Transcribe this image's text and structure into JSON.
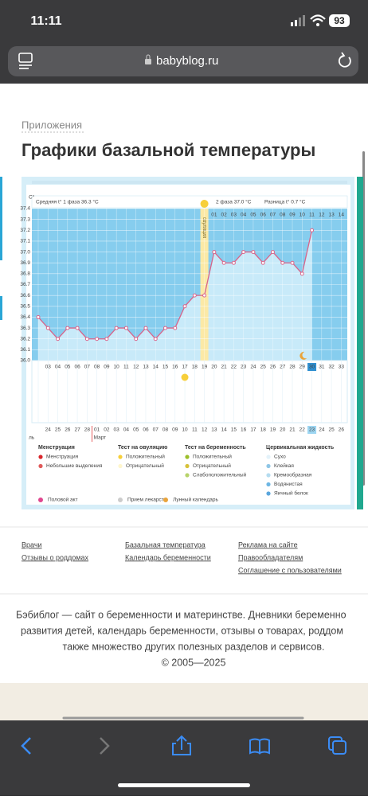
{
  "status_bar": {
    "time": "11:11",
    "battery": "93"
  },
  "address_bar": {
    "url": "babyblog.ru"
  },
  "breadcrumb": "Приложения",
  "title": "Графики базальной температуры",
  "chart_data": {
    "type": "line",
    "y_unit": "С°",
    "summary": {
      "phase1": "Средняя t° 1 фаза 36.3 °C",
      "phase2": "2 фаза 37.0 °C",
      "difference": "Разница t° 0.7 °C"
    },
    "ovulation_label": "овуляция",
    "categories": [
      null,
      "03",
      "04",
      "05",
      "06",
      "07",
      "08",
      "09",
      "10",
      "11",
      "12",
      "13",
      "14",
      "15",
      "16",
      "17",
      "18",
      "19",
      "20",
      "21",
      "22",
      "23",
      "24",
      "25",
      "26",
      "27",
      "28",
      "29",
      "30",
      "31",
      "32",
      "33"
    ],
    "phase2_days": [
      "01",
      "02",
      "03",
      "04",
      "05",
      "06",
      "07",
      "08",
      "09",
      "10",
      "11",
      "12",
      "13",
      "14"
    ],
    "dates": [
      null,
      "24",
      "25",
      "26",
      "27",
      "28",
      "01",
      "02",
      "03",
      "04",
      "05",
      "06",
      "07",
      "08",
      "09",
      "10",
      "11",
      "12",
      "13",
      "14",
      "15",
      "16",
      "17",
      "18",
      "19",
      "20",
      "21",
      "22",
      "23",
      "24",
      "25",
      "26"
    ],
    "month_labels": [
      "ль",
      "Март"
    ],
    "values": [
      36.4,
      36.3,
      36.2,
      36.3,
      36.3,
      36.2,
      36.2,
      36.2,
      36.3,
      36.3,
      36.2,
      36.3,
      36.2,
      36.3,
      36.3,
      36.5,
      36.6,
      36.6,
      37.0,
      36.9,
      36.9,
      37.0,
      37.0,
      36.9,
      37.0,
      36.9,
      36.9,
      36.8,
      37.2,
      null,
      null,
      null
    ],
    "color": "#d9648a",
    "ylim": [
      36.0,
      37.4
    ],
    "yticks": [
      {
        "value": 36,
        "label": "36.0"
      },
      36.1,
      36.2,
      36.3,
      36.4,
      36.5,
      36.6,
      36.7,
      36.8,
      36.9,
      {
        "value": 37,
        "label": "37.0"
      },
      37.1,
      37.2,
      37.3,
      37.4
    ],
    "grid": true
  },
  "legend": {
    "menstruation": {
      "title": "Менструация",
      "items": [
        "Менструация",
        "Небольшие выделения"
      ]
    },
    "ovulation_test": {
      "title": "Тест на овуляцию",
      "items": [
        "Положительный",
        "Отрицательный"
      ]
    },
    "pregnancy_test": {
      "title": "Тест на беременность",
      "items": [
        "Положительный",
        "Отрицательный",
        "Слабоположительный"
      ]
    },
    "cervical_fluid": {
      "title": "Цервикальная жидкость",
      "items": [
        "Сухо",
        "Клейкая",
        "Кремообразная",
        "Водянистая",
        "Яичный белок"
      ]
    },
    "other": [
      "Половой акт",
      "Прием лекарств",
      "Лунный календарь"
    ]
  },
  "footer_links": [
    [
      "Врачи",
      "Отзывы о роддомах"
    ],
    [
      "Базальная температура",
      "Календарь беременности"
    ],
    [
      "Реклама на сайте",
      "Правообладателям",
      "Соглашение с пользователями"
    ]
  ],
  "footer_text": [
    "Бэбиблог — сайт о беременности и материнстве. Дневники беременно",
    "развития детей, календарь беременности, отзывы о товарах, роддом",
    "также множество других полезных разделов и сервисов.",
    "© 2005—2025"
  ]
}
